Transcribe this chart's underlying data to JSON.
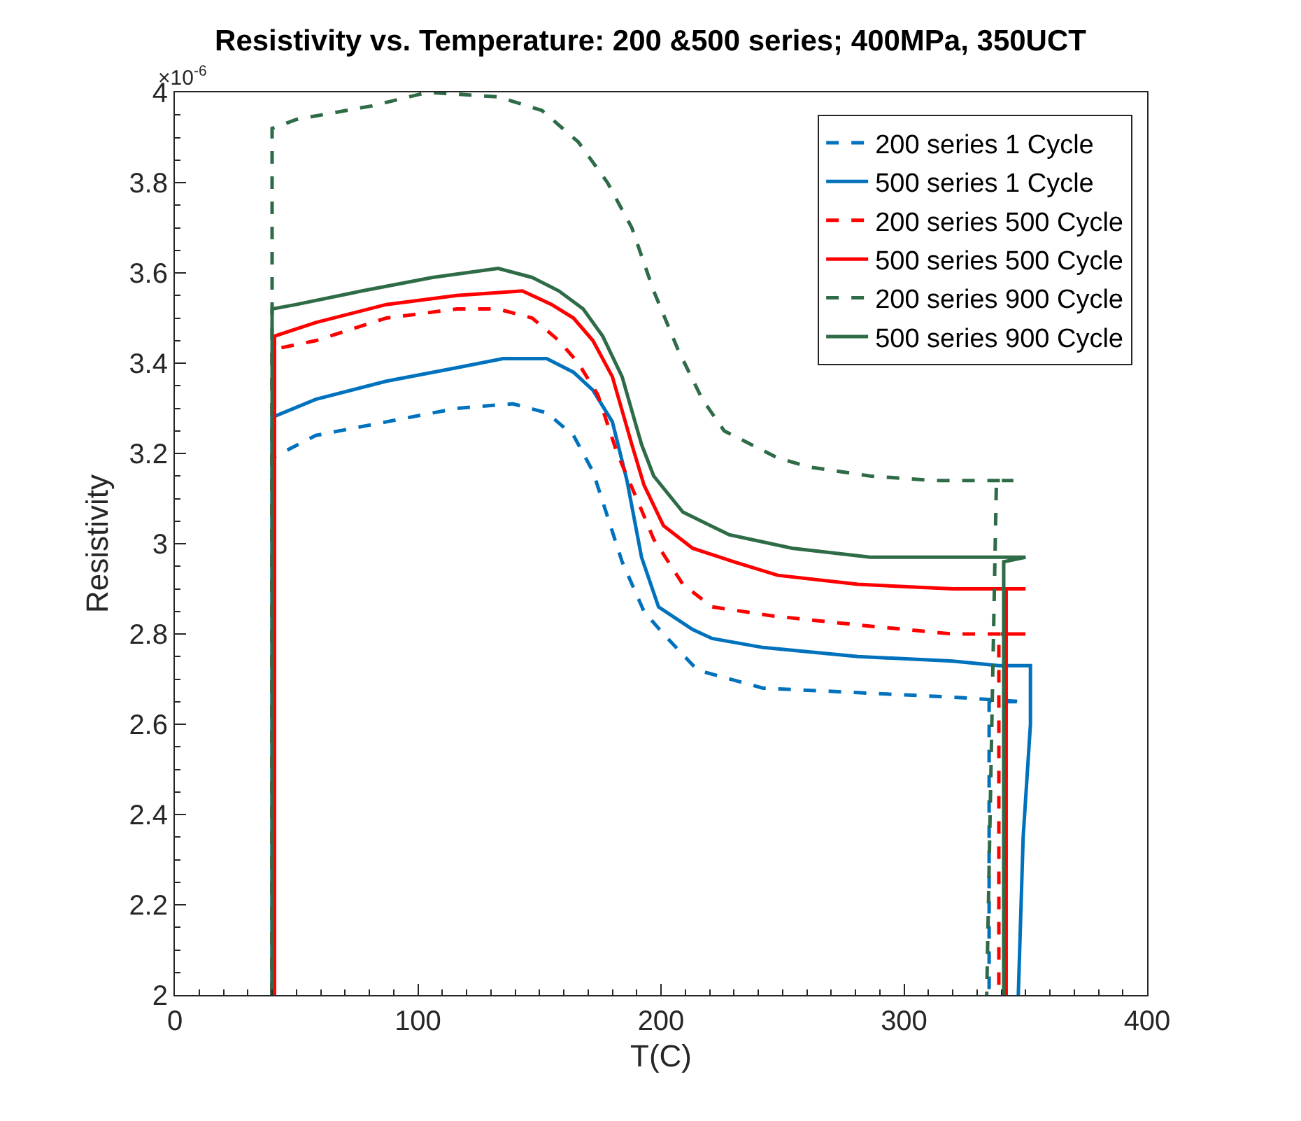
{
  "chart_data": {
    "type": "line",
    "title": "Resistivity vs. Temperature: 200 &500 series; 400MPa, 350UCT",
    "xlabel": "T(C)",
    "ylabel": "Resistivity",
    "annotations": [
      "×10$^{-6}$"
    ],
    "xlim": [
      0,
      400
    ],
    "xticks": [
      0,
      100,
      200,
      300,
      400
    ],
    "ylim": [
      2,
      4
    ],
    "yticks": [
      2,
      2.2,
      2.4,
      2.6,
      2.8,
      3,
      3.2,
      3.4,
      3.6,
      3.8,
      4
    ],
    "legend": "top right",
    "marker": "none",
    "series": [
      {
        "name": "200 series 1 Cycle",
        "color": "#0072bd",
        "line_style": "dashed",
        "x": [
          40,
          40,
          58,
          87,
          116,
          139,
          153,
          164,
          172,
          178,
          184,
          193,
          201,
          215,
          242,
          281,
          320,
          349,
          335,
          335
        ],
        "values": [
          2,
          3.19,
          3.24,
          3.27,
          3.3,
          3.31,
          3.29,
          3.24,
          3.16,
          3.06,
          2.96,
          2.85,
          2.8,
          2.72,
          2.68,
          2.67,
          2.66,
          2.65,
          2.65,
          2
        ]
      },
      {
        "name": "500 series 1 Cycle",
        "color": "#0072bd",
        "line_style": "solid",
        "x": [
          40,
          40,
          58,
          87,
          116,
          135,
          153,
          164,
          172,
          180,
          186,
          192,
          199,
          213,
          221,
          242,
          281,
          320,
          339,
          352,
          352,
          349,
          347
        ],
        "values": [
          2,
          3.28,
          3.32,
          3.36,
          3.39,
          3.41,
          3.41,
          3.38,
          3.34,
          3.27,
          3.14,
          2.97,
          2.86,
          2.81,
          2.79,
          2.77,
          2.75,
          2.74,
          2.73,
          2.73,
          2.6,
          2.35,
          2
        ]
      },
      {
        "name": "200 series 500 Cycle",
        "color": "#ff0000",
        "line_style": "dashed",
        "x": [
          40,
          40,
          58,
          87,
          116,
          133,
          147,
          158,
          166,
          174,
          182,
          190,
          197,
          209,
          221,
          246,
          281,
          320,
          350,
          339,
          339
        ],
        "values": [
          2,
          3.43,
          3.45,
          3.5,
          3.52,
          3.52,
          3.5,
          3.45,
          3.4,
          3.33,
          3.2,
          3.1,
          3.01,
          2.91,
          2.86,
          2.84,
          2.82,
          2.8,
          2.8,
          2.8,
          2
        ]
      },
      {
        "name": "500 series 500 Cycle",
        "color": "#ff0000",
        "line_style": "solid",
        "x": [
          41,
          41,
          58,
          87,
          116,
          143,
          155,
          164,
          172,
          180,
          188,
          193,
          201,
          213,
          230,
          248,
          281,
          320,
          350,
          342,
          342
        ],
        "values": [
          2,
          3.46,
          3.49,
          3.53,
          3.55,
          3.56,
          3.53,
          3.5,
          3.45,
          3.37,
          3.22,
          3.13,
          3.04,
          2.99,
          2.96,
          2.93,
          2.91,
          2.9,
          2.9,
          2.9,
          2
        ]
      },
      {
        "name": "200 series 900 Cycle",
        "color": "#2e6b47",
        "line_style": "dashed",
        "x": [
          40,
          40,
          50,
          81,
          104,
          133,
          151,
          166,
          178,
          188,
          197,
          207,
          217,
          226,
          248,
          261,
          286,
          312,
          337,
          345,
          338,
          334
        ],
        "values": [
          2,
          3.92,
          3.94,
          3.97,
          4.0,
          3.99,
          3.96,
          3.89,
          3.8,
          3.7,
          3.56,
          3.43,
          3.32,
          3.25,
          3.19,
          3.17,
          3.15,
          3.14,
          3.14,
          3.14,
          3.14,
          2
        ]
      },
      {
        "name": "500 series 900 Cycle",
        "color": "#2e6b47",
        "line_style": "solid",
        "x": [
          40,
          40,
          50,
          77,
          106,
          133,
          147,
          158,
          168,
          176,
          184,
          192,
          197,
          209,
          228,
          254,
          286,
          324,
          350,
          341,
          341
        ],
        "values": [
          2,
          3.52,
          3.53,
          3.56,
          3.59,
          3.61,
          3.59,
          3.56,
          3.52,
          3.46,
          3.37,
          3.22,
          3.15,
          3.07,
          3.02,
          2.99,
          2.97,
          2.97,
          2.97,
          2.96,
          2
        ]
      }
    ]
  }
}
